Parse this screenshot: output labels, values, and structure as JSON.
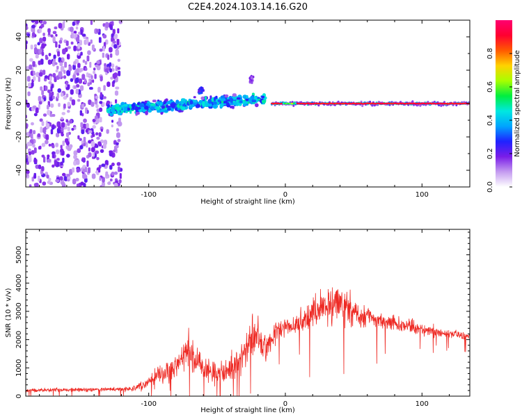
{
  "figure_title": "C2E4.2024.103.14.16.G20",
  "chart_data": [
    {
      "type": "heatmap",
      "xlabel": "Height of straight line (km)",
      "ylabel": "Frequency (Hz)",
      "xlim": [
        -190,
        135
      ],
      "ylim": [
        -50,
        50
      ],
      "xticks": [
        -100,
        0,
        100
      ],
      "yticks": [
        -40,
        -20,
        0,
        20,
        40
      ],
      "colorbar": {
        "label": "Normalized spectral amplitude",
        "range": [
          0,
          1
        ],
        "ticks": [
          0.0,
          0.2,
          0.4,
          0.6,
          0.8
        ],
        "colormap": [
          "#ffffff",
          "#c49bf0",
          "#7a1de8",
          "#1f22ff",
          "#00a4ff",
          "#00e8e0",
          "#00ee40",
          "#a8ff00",
          "#ffd200",
          "#ff5a00",
          "#ff0030",
          "#ff0070"
        ]
      },
      "features": [
        {
          "label": "broadband noise",
          "x_range": [
            -190,
            -120
          ],
          "y_range": [
            -50,
            50
          ],
          "level": 0.12
        },
        {
          "label": "scattered trace",
          "x_range": [
            -130,
            -15
          ],
          "y_range": [
            -12,
            12
          ],
          "level": 0.35
        },
        {
          "label": "steady line",
          "x_range": [
            -10,
            135
          ],
          "y_center": 0,
          "level": 0.95
        }
      ]
    },
    {
      "type": "line",
      "xlabel": "Height of straight line (km)",
      "ylabel": "SNR (10 * v/v)",
      "xlim": [
        -190,
        135
      ],
      "ylim": [
        0,
        5900
      ],
      "xticks": [
        -100,
        0,
        100
      ],
      "yticks": [
        0,
        1000,
        2000,
        3000,
        4000,
        5000
      ],
      "line_color": "#ee2a24",
      "series": [
        {
          "x": [
            -190,
            -180,
            -170,
            -160,
            -150,
            -140,
            -130,
            -120,
            -110,
            -100,
            -95,
            -90,
            -85,
            -80,
            -75,
            -72,
            -68,
            -65,
            -60,
            -55,
            -50,
            -45,
            -40,
            -35,
            -30,
            -28,
            -25,
            -22,
            -20,
            -18,
            -15,
            -12,
            -10,
            -5,
            0,
            5,
            8,
            10,
            15,
            18,
            20,
            25,
            30,
            35,
            40,
            45,
            50,
            55,
            60,
            65,
            70,
            75,
            80,
            85,
            90,
            95,
            100,
            105,
            110,
            115,
            120,
            125,
            130,
            135
          ],
          "mean": [
            200,
            200,
            220,
            230,
            220,
            230,
            240,
            240,
            280,
            500,
            650,
            800,
            900,
            1000,
            1400,
            1600,
            1400,
            1200,
            1000,
            900,
            800,
            900,
            1000,
            1200,
            1500,
            1700,
            2000,
            2200,
            2100,
            1800,
            1600,
            1800,
            2000,
            2400,
            2500,
            2400,
            2500,
            2600,
            2800,
            2900,
            2900,
            3000,
            3100,
            3200,
            3300,
            3100,
            2900,
            2800,
            2800,
            2700,
            2700,
            2600,
            2600,
            2500,
            2500,
            2400,
            2400,
            2300,
            2300,
            2200,
            2200,
            2200,
            2100,
            2100
          ],
          "spread": [
            150,
            150,
            150,
            150,
            150,
            150,
            160,
            160,
            220,
            500,
            700,
            800,
            900,
            1000,
            1400,
            1700,
            1300,
            1100,
            1000,
            900,
            800,
            900,
            1000,
            1100,
            1300,
            1500,
            1700,
            1800,
            1700,
            1600,
            1400,
            1300,
            1300,
            800,
            600,
            700,
            800,
            900,
            1100,
            1200,
            1300,
            1400,
            1500,
            1600,
            1700,
            1500,
            1300,
            1100,
            1000,
            900,
            800,
            700,
            650,
            600,
            550,
            500,
            450,
            450,
            400,
            400,
            350,
            350,
            300,
            300
          ]
        }
      ]
    }
  ]
}
